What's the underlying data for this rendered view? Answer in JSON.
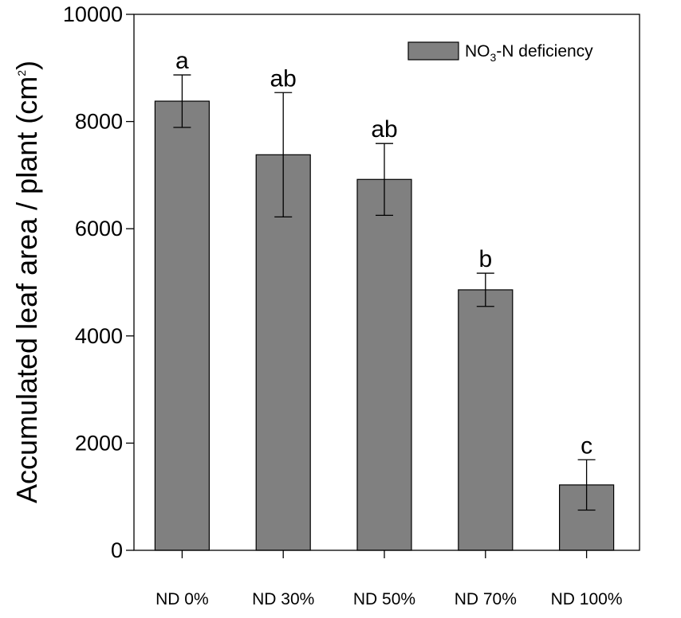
{
  "chart_data": {
    "type": "bar",
    "title": "",
    "xlabel": "",
    "ylabel": {
      "main": "Accumulated leaf area / plant (cm",
      "sup": "2",
      "close": ")"
    },
    "ylim": [
      0,
      10000
    ],
    "yticks": [
      0,
      2000,
      4000,
      6000,
      8000,
      10000
    ],
    "categories": [
      "ND 0%",
      "ND 30%",
      "ND 50%",
      "ND 70%",
      "ND 100%"
    ],
    "series": [
      {
        "name": "NO3-N deficiency",
        "values": [
          8380,
          7380,
          6920,
          4860,
          1220
        ],
        "errors": [
          490,
          1160,
          670,
          310,
          470
        ],
        "significance": [
          "a",
          "ab",
          "ab",
          "b",
          "c"
        ],
        "color": "#808080"
      }
    ],
    "legend": {
      "position": "top-right",
      "label_parts": [
        "NO",
        "3",
        "-N deficiency"
      ]
    }
  }
}
